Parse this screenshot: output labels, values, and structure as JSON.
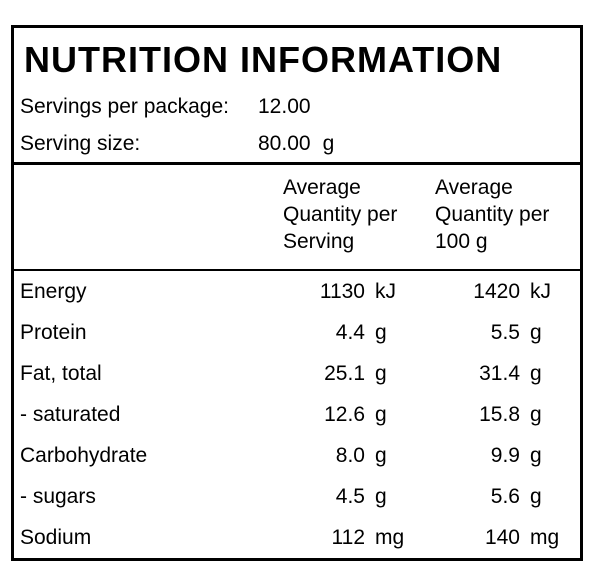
{
  "panel": {
    "title": "NUTRITION INFORMATION",
    "servings_per_package": {
      "label": "Servings per package:",
      "value": "12.00"
    },
    "serving_size": {
      "label": "Serving size:",
      "value": "80.00",
      "unit": "g"
    },
    "columns": {
      "per_serving": "Average\nQuantity per\nServing",
      "per_100g": "Average\nQuantity per\n100 g"
    },
    "rows": [
      {
        "label": "Energy",
        "per_serving": "1130",
        "per_serving_unit": "kJ",
        "per_100g": "1420",
        "per_100g_unit": "kJ"
      },
      {
        "label": "Protein",
        "per_serving": "4.4",
        "per_serving_unit": "g",
        "per_100g": "5.5",
        "per_100g_unit": "g"
      },
      {
        "label": "Fat, total",
        "per_serving": "25.1",
        "per_serving_unit": "g",
        "per_100g": "31.4",
        "per_100g_unit": "g"
      },
      {
        "label": "- saturated",
        "per_serving": "12.6",
        "per_serving_unit": "g",
        "per_100g": "15.8",
        "per_100g_unit": "g"
      },
      {
        "label": "Carbohydrate",
        "per_serving": "8.0",
        "per_serving_unit": "g",
        "per_100g": "9.9",
        "per_100g_unit": "g"
      },
      {
        "label": "- sugars",
        "per_serving": "4.5",
        "per_serving_unit": "g",
        "per_100g": "5.6",
        "per_100g_unit": "g"
      },
      {
        "label": "Sodium",
        "per_serving": "112",
        "per_serving_unit": "mg",
        "per_100g": "140",
        "per_100g_unit": "mg"
      }
    ]
  },
  "colors": {
    "border": "#000000",
    "background": "#ffffff",
    "text": "#000000"
  }
}
